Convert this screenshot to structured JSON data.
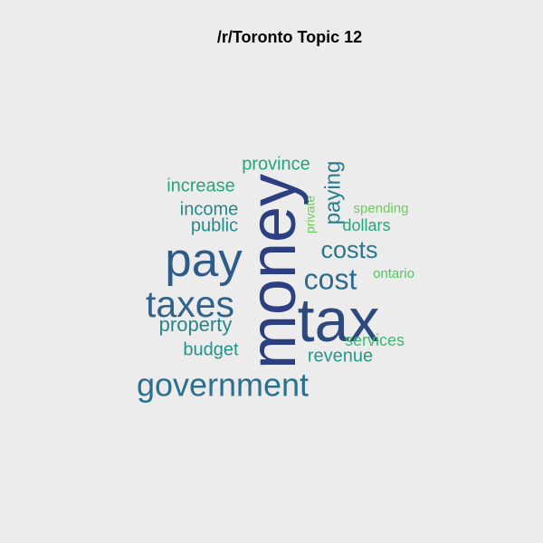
{
  "chart_data": {
    "type": "wordcloud",
    "title": "/r/Toronto Topic 12",
    "words": [
      {
        "text": "money",
        "weight": 1.0,
        "color": "#2b3f82",
        "rotate": -90
      },
      {
        "text": "tax",
        "weight": 0.95,
        "color": "#2d4a7f",
        "rotate": 0
      },
      {
        "text": "pay",
        "weight": 0.74,
        "color": "#2f5b8a",
        "rotate": 0
      },
      {
        "text": "taxes",
        "weight": 0.57,
        "color": "#30628b",
        "rotate": 0
      },
      {
        "text": "government",
        "weight": 0.5,
        "color": "#2c6f8e",
        "rotate": 0
      },
      {
        "text": "cost",
        "weight": 0.44,
        "color": "#2d6b8e",
        "rotate": 0
      },
      {
        "text": "costs",
        "weight": 0.37,
        "color": "#2d778d",
        "rotate": 0
      },
      {
        "text": "paying",
        "weight": 0.33,
        "color": "#2a7d8c",
        "rotate": -90
      },
      {
        "text": "property",
        "weight": 0.31,
        "color": "#2a848b",
        "rotate": 0
      },
      {
        "text": "income",
        "weight": 0.27,
        "color": "#28868b",
        "rotate": 0
      },
      {
        "text": "public",
        "weight": 0.27,
        "color": "#268a89",
        "rotate": 0
      },
      {
        "text": "budget",
        "weight": 0.27,
        "color": "#22938a",
        "rotate": 0
      },
      {
        "text": "revenue",
        "weight": 0.27,
        "color": "#239b87",
        "rotate": 0
      },
      {
        "text": "province",
        "weight": 0.27,
        "color": "#24a480",
        "rotate": 0
      },
      {
        "text": "increase",
        "weight": 0.27,
        "color": "#27a579",
        "rotate": 0
      },
      {
        "text": "dollars",
        "weight": 0.24,
        "color": "#2aa578",
        "rotate": 0
      },
      {
        "text": "services",
        "weight": 0.24,
        "color": "#3fb872",
        "rotate": 0
      },
      {
        "text": "ontario",
        "weight": 0.2,
        "color": "#56c469",
        "rotate": 0
      },
      {
        "text": "spending",
        "weight": 0.2,
        "color": "#6fca5f",
        "rotate": 0
      },
      {
        "text": "private",
        "weight": 0.18,
        "color": "#71c95d",
        "rotate": -90
      }
    ]
  }
}
